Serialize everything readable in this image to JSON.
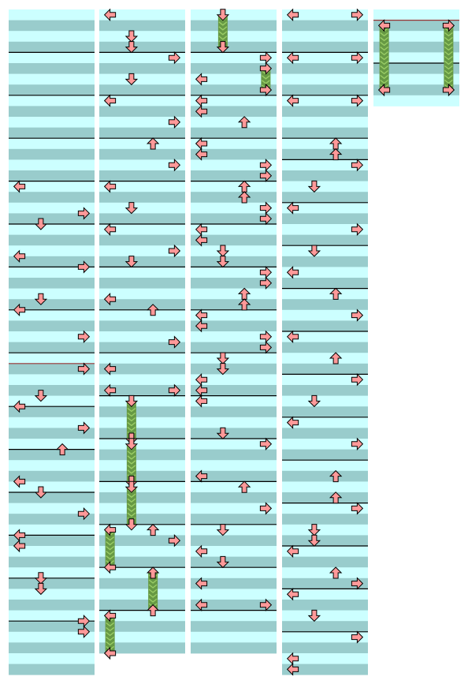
{
  "chart": {
    "arrow_directions": [
      "left",
      "down",
      "up",
      "right"
    ],
    "rows_per_measure": 4,
    "colors": {
      "row_light": "#ccffff",
      "row_dark": "#99cccc",
      "measure_line": "#000000",
      "bpm_change_line": "#993333",
      "arrow_fill": "#ff9999",
      "arrow_stroke": "#000000",
      "hold_body": "#669944",
      "hold_stripe": "#99cc66"
    },
    "columns": [
      {
        "rows": 62,
        "measure_marks": [
          {
            "row": 4
          },
          {
            "row": 8
          },
          {
            "row": 12
          },
          {
            "row": 16
          },
          {
            "row": 20
          },
          {
            "row": 24
          },
          {
            "row": 28
          },
          {
            "row": 32
          },
          {
            "row": 33,
            "type": "bpm"
          },
          {
            "row": 37
          },
          {
            "row": 41
          },
          {
            "row": 45
          },
          {
            "row": 49
          },
          {
            "row": 53
          },
          {
            "row": 57
          }
        ],
        "notes": [
          {
            "dir": "left",
            "row": 16.5
          },
          {
            "dir": "right",
            "row": 19
          },
          {
            "dir": "down",
            "row": 20
          },
          {
            "dir": "left",
            "row": 23
          },
          {
            "dir": "right",
            "row": 24
          },
          {
            "dir": "down",
            "row": 27
          },
          {
            "dir": "left",
            "row": 28
          },
          {
            "dir": "right",
            "row": 30.5
          },
          {
            "dir": "right",
            "row": 33.5
          },
          {
            "dir": "down",
            "row": 36
          },
          {
            "dir": "left",
            "row": 37
          },
          {
            "dir": "right",
            "row": 39
          },
          {
            "dir": "up",
            "row": 41
          },
          {
            "dir": "left",
            "row": 44
          },
          {
            "dir": "down",
            "row": 45
          },
          {
            "dir": "right",
            "row": 47
          },
          {
            "dir": "left",
            "row": 49
          },
          {
            "dir": "left",
            "row": 50
          },
          {
            "dir": "down",
            "row": 53
          },
          {
            "dir": "down",
            "row": 54
          },
          {
            "dir": "right",
            "row": 57
          },
          {
            "dir": "right",
            "row": 58
          }
        ]
      },
      {
        "rows": 60,
        "measure_marks": [
          {
            "row": 4
          },
          {
            "row": 8
          },
          {
            "row": 12
          },
          {
            "row": 16
          },
          {
            "row": 20
          },
          {
            "row": 24
          },
          {
            "row": 28
          },
          {
            "row": 32
          },
          {
            "row": 36
          },
          {
            "row": 40
          },
          {
            "row": 44
          },
          {
            "row": 48
          },
          {
            "row": 52
          },
          {
            "row": 56
          }
        ],
        "notes": [
          {
            "dir": "left",
            "row": 0.5
          },
          {
            "dir": "down",
            "row": 2.5
          },
          {
            "dir": "down",
            "row": 3.5
          },
          {
            "dir": "right",
            "row": 4.5
          },
          {
            "dir": "down",
            "row": 6.5
          },
          {
            "dir": "left",
            "row": 8.5
          },
          {
            "dir": "right",
            "row": 10.5
          },
          {
            "dir": "up",
            "row": 12.5
          },
          {
            "dir": "right",
            "row": 14.5
          },
          {
            "dir": "left",
            "row": 16.5
          },
          {
            "dir": "down",
            "row": 18.5
          },
          {
            "dir": "left",
            "row": 20.5
          },
          {
            "dir": "right",
            "row": 22.5
          },
          {
            "dir": "down",
            "row": 23.5
          },
          {
            "dir": "left",
            "row": 27
          },
          {
            "dir": "up",
            "row": 28
          },
          {
            "dir": "right",
            "row": 31
          },
          {
            "dir": "left",
            "row": 33.5
          },
          {
            "dir": "right",
            "row": 35.5
          },
          {
            "dir": "left",
            "row": 35.5
          },
          {
            "dir": "down",
            "row": 36.5,
            "hold_end": 40
          },
          {
            "dir": "down",
            "row": 40.5,
            "hold_end": 44
          },
          {
            "dir": "down",
            "row": 44.5,
            "hold_end": 48
          },
          {
            "dir": "up",
            "row": 48.5
          },
          {
            "dir": "right",
            "row": 49.5
          },
          {
            "dir": "left",
            "row": 48.5,
            "hold_end": 52
          },
          {
            "dir": "up",
            "row": 52.5,
            "hold_end": 56
          },
          {
            "dir": "left",
            "row": 56.5,
            "hold_end": 60
          }
        ]
      },
      {
        "rows": 60,
        "measure_marks": [
          {
            "row": 4
          },
          {
            "row": 8
          },
          {
            "row": 12
          },
          {
            "row": 16
          },
          {
            "row": 20
          },
          {
            "row": 24
          },
          {
            "row": 28
          },
          {
            "row": 32
          },
          {
            "row": 36
          },
          {
            "row": 40
          },
          {
            "row": 44
          },
          {
            "row": 48
          },
          {
            "row": 52
          },
          {
            "row": 56
          }
        ],
        "notes": [
          {
            "dir": "down",
            "row": 0.5,
            "hold_end": 3.5
          },
          {
            "dir": "right",
            "row": 4.5
          },
          {
            "dir": "right",
            "row": 5.5,
            "hold_end": 7.5
          },
          {
            "dir": "left",
            "row": 6.5
          },
          {
            "dir": "left",
            "row": 8.5
          },
          {
            "dir": "left",
            "row": 9.5
          },
          {
            "dir": "up",
            "row": 10.5
          },
          {
            "dir": "left",
            "row": 12.5
          },
          {
            "dir": "left",
            "row": 13.5
          },
          {
            "dir": "right",
            "row": 14.5
          },
          {
            "dir": "right",
            "row": 15.5
          },
          {
            "dir": "up",
            "row": 16.5
          },
          {
            "dir": "up",
            "row": 17.5
          },
          {
            "dir": "right",
            "row": 18.5
          },
          {
            "dir": "right",
            "row": 19.5
          },
          {
            "dir": "left",
            "row": 20.5
          },
          {
            "dir": "left",
            "row": 21.5
          },
          {
            "dir": "down",
            "row": 22.5
          },
          {
            "dir": "down",
            "row": 23.5
          },
          {
            "dir": "right",
            "row": 24.5
          },
          {
            "dir": "right",
            "row": 25.5
          },
          {
            "dir": "up",
            "row": 26.5
          },
          {
            "dir": "up",
            "row": 27.5
          },
          {
            "dir": "left",
            "row": 28.5
          },
          {
            "dir": "left",
            "row": 29.5
          },
          {
            "dir": "right",
            "row": 30.5
          },
          {
            "dir": "right",
            "row": 31.5
          },
          {
            "dir": "down",
            "row": 32.5
          },
          {
            "dir": "down",
            "row": 33.5
          },
          {
            "dir": "left",
            "row": 34.5
          },
          {
            "dir": "left",
            "row": 35.5
          },
          {
            "dir": "left",
            "row": 36.5
          },
          {
            "dir": "down",
            "row": 39.5
          },
          {
            "dir": "right",
            "row": 40.5
          },
          {
            "dir": "left",
            "row": 43.5
          },
          {
            "dir": "up",
            "row": 44.5
          },
          {
            "dir": "right",
            "row": 46.5
          },
          {
            "dir": "down",
            "row": 48.5
          },
          {
            "dir": "left",
            "row": 50.5
          },
          {
            "dir": "down",
            "row": 51.5
          },
          {
            "dir": "left",
            "row": 53.5
          },
          {
            "dir": "right",
            "row": 55.5
          },
          {
            "dir": "left",
            "row": 55.5
          }
        ]
      },
      {
        "rows": 62,
        "measure_marks": [
          {
            "row": 4
          },
          {
            "row": 8
          },
          {
            "row": 12
          },
          {
            "row": 14
          },
          {
            "row": 18
          },
          {
            "row": 22
          },
          {
            "row": 26
          },
          {
            "row": 30
          },
          {
            "row": 34
          },
          {
            "row": 38
          },
          {
            "row": 42
          },
          {
            "row": 46
          },
          {
            "row": 50
          },
          {
            "row": 54
          },
          {
            "row": 58
          }
        ],
        "notes": [
          {
            "dir": "left",
            "row": 0.5
          },
          {
            "dir": "right",
            "row": 0.5
          },
          {
            "dir": "right",
            "row": 4.5
          },
          {
            "dir": "left",
            "row": 4.5
          },
          {
            "dir": "left",
            "row": 8.5
          },
          {
            "dir": "right",
            "row": 8.5
          },
          {
            "dir": "up",
            "row": 12.5
          },
          {
            "dir": "up",
            "row": 13.5
          },
          {
            "dir": "right",
            "row": 14.5
          },
          {
            "dir": "down",
            "row": 16.5
          },
          {
            "dir": "left",
            "row": 18.5
          },
          {
            "dir": "right",
            "row": 20.5
          },
          {
            "dir": "down",
            "row": 22.5
          },
          {
            "dir": "left",
            "row": 24.5
          },
          {
            "dir": "up",
            "row": 26.5
          },
          {
            "dir": "right",
            "row": 28.5
          },
          {
            "dir": "left",
            "row": 30.5
          },
          {
            "dir": "up",
            "row": 32.5
          },
          {
            "dir": "right",
            "row": 34.5
          },
          {
            "dir": "down",
            "row": 36.5
          },
          {
            "dir": "left",
            "row": 38.5
          },
          {
            "dir": "right",
            "row": 40.5
          },
          {
            "dir": "up",
            "row": 43.5
          },
          {
            "dir": "up",
            "row": 45.5
          },
          {
            "dir": "right",
            "row": 46.5
          },
          {
            "dir": "down",
            "row": 48.5
          },
          {
            "dir": "down",
            "row": 49.5
          },
          {
            "dir": "left",
            "row": 50.5
          },
          {
            "dir": "up",
            "row": 52.5
          },
          {
            "dir": "right",
            "row": 53.5
          },
          {
            "dir": "left",
            "row": 54.5
          },
          {
            "dir": "down",
            "row": 56.5
          },
          {
            "dir": "right",
            "row": 58.5
          },
          {
            "dir": "left",
            "row": 60.5
          },
          {
            "dir": "left",
            "row": 61.5
          }
        ]
      },
      {
        "rows": 9,
        "measure_marks": [
          {
            "row": 1,
            "type": "bpm"
          },
          {
            "row": 5
          }
        ],
        "notes": [
          {
            "dir": "right",
            "row": 1.5,
            "hold_end": 7.5
          },
          {
            "dir": "left",
            "row": 1.5,
            "hold_end": 7.5
          }
        ]
      }
    ]
  }
}
